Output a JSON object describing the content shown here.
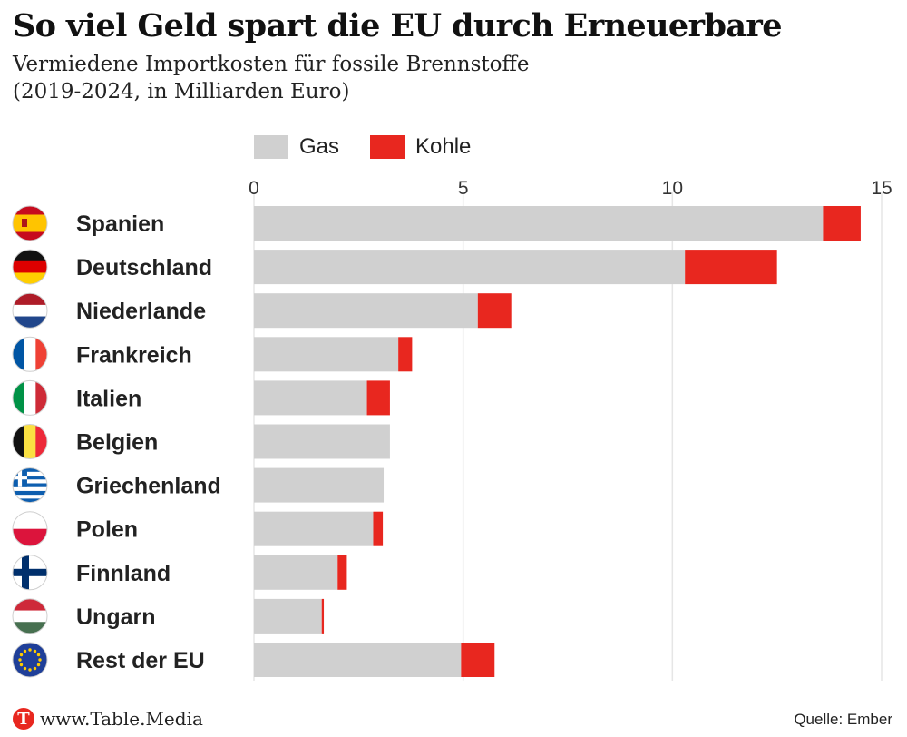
{
  "title": "So viel Geld spart die EU durch Erneuerbare",
  "subtitle_line1": "Vermiedene Importkosten für fossile Brennstoffe",
  "subtitle_line2": "(2019-2024, in Milliarden Euro)",
  "footer": {
    "logo_letter": "T",
    "site": "www.Table.Media",
    "source": "Quelle: Ember"
  },
  "colors": {
    "gas": "#d0d0d0",
    "kohle": "#e8271f"
  },
  "chart_data": {
    "type": "bar",
    "orientation": "horizontal",
    "stacked": true,
    "xlim": [
      0,
      15
    ],
    "ticks": [
      0,
      5,
      10,
      15
    ],
    "legend": [
      {
        "name": "Gas",
        "color": "#d0d0d0"
      },
      {
        "name": "Kohle",
        "color": "#e8271f"
      }
    ],
    "categories": [
      "Spanien",
      "Deutschland",
      "Niederlande",
      "Frankreich",
      "Italien",
      "Belgien",
      "Griechenland",
      "Polen",
      "Finnland",
      "Ungarn",
      "Rest der EU"
    ],
    "flags": [
      "flag-spain",
      "flag-germany",
      "flag-netherlands",
      "flag-france",
      "flag-italy",
      "flag-belgium",
      "flag-greece",
      "flag-poland",
      "flag-finland",
      "flag-hungary",
      "flag-eu"
    ],
    "series": [
      {
        "name": "Gas",
        "values": [
          13.6,
          10.3,
          5.35,
          3.45,
          2.7,
          3.25,
          3.1,
          2.85,
          2.0,
          1.62,
          4.95
        ]
      },
      {
        "name": "Kohle",
        "values": [
          0.9,
          2.2,
          0.8,
          0.33,
          0.55,
          0.0,
          0.0,
          0.23,
          0.22,
          0.05,
          0.8
        ]
      }
    ]
  }
}
